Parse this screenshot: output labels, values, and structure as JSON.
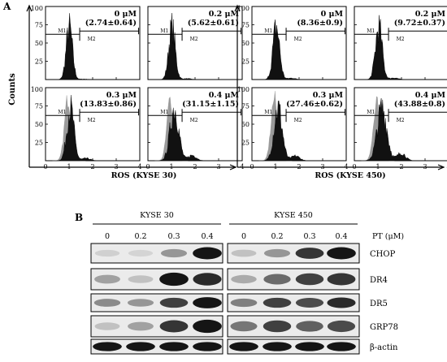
{
  "panel_a": {
    "letter": "A",
    "y_label": "Counts",
    "y_ticks": [
      "0",
      "25",
      "50",
      "75",
      "100"
    ],
    "x_ticks": [
      "0",
      "1",
      "2",
      "3",
      "4"
    ],
    "gate_left": "M1",
    "gate_right": "M2",
    "groups": [
      {
        "x_label": "ROS (KYSE 30)",
        "histograms": [
          {
            "dose": "0 μM",
            "value": "(2.74±0.64)",
            "ros": 2.74,
            "control_overlay": false
          },
          {
            "dose": "0.2 μM",
            "value": "(5.62±0.61)",
            "ros": 5.62,
            "control_overlay": false
          },
          {
            "dose": "0.3 μM",
            "value": "(13.83±0.86)",
            "ros": 13.83,
            "control_overlay": true
          },
          {
            "dose": "0.4 μM",
            "value": "(31.15±1.15)",
            "ros": 31.15,
            "control_overlay": true
          }
        ]
      },
      {
        "x_label": "ROS (KYSE 450)",
        "histograms": [
          {
            "dose": "0 μM",
            "value": "(8.36±0.9)",
            "ros": 8.36,
            "control_overlay": false
          },
          {
            "dose": "0.2 μM",
            "value": "(9.72±0.37)",
            "ros": 9.72,
            "control_overlay": false
          },
          {
            "dose": "0.3 μM",
            "value": "(27.46±0.62)",
            "ros": 27.46,
            "control_overlay": true
          },
          {
            "dose": "0.4 μM",
            "value": "(43.88±0.8)",
            "ros": 43.88,
            "control_overlay": true
          }
        ]
      }
    ]
  },
  "panel_b": {
    "letter": "B",
    "cell_lines": [
      "KYSE 30",
      "KYSE 450"
    ],
    "doses": [
      "0",
      "0.2",
      "0.3",
      "0.4"
    ],
    "dose_header": "PT (μM)",
    "proteins": [
      {
        "name": "CHOP",
        "kyse30": [
          0.08,
          0.06,
          0.35,
          0.95
        ],
        "kyse450": [
          0.15,
          0.35,
          0.8,
          0.95
        ]
      },
      {
        "name": "DR4",
        "kyse30": [
          0.3,
          0.15,
          0.95,
          0.85
        ],
        "kyse450": [
          0.25,
          0.55,
          0.75,
          0.8
        ]
      },
      {
        "name": "DR5",
        "kyse30": [
          0.4,
          0.35,
          0.75,
          0.95
        ],
        "kyse450": [
          0.45,
          0.75,
          0.7,
          0.85
        ]
      },
      {
        "name": "GRP78",
        "kyse30": [
          0.15,
          0.3,
          0.8,
          0.95
        ],
        "kyse450": [
          0.5,
          0.75,
          0.6,
          0.7
        ]
      },
      {
        "name": "β-actin",
        "kyse30": [
          0.95,
          0.95,
          0.95,
          0.95
        ],
        "kyse450": [
          0.95,
          0.95,
          0.95,
          0.95
        ]
      }
    ]
  }
}
